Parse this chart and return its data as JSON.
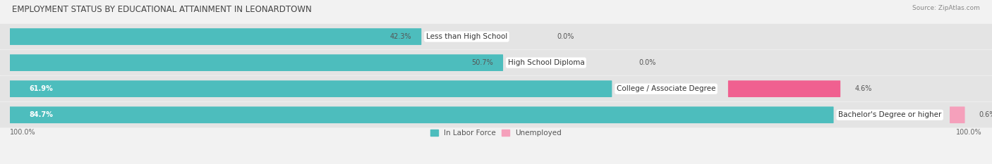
{
  "title": "EMPLOYMENT STATUS BY EDUCATIONAL ATTAINMENT IN LEONARDTOWN",
  "source": "Source: ZipAtlas.com",
  "categories": [
    "Less than High School",
    "High School Diploma",
    "College / Associate Degree",
    "Bachelor's Degree or higher"
  ],
  "labor_force_values": [
    42.3,
    50.7,
    61.9,
    84.7
  ],
  "unemployed_values": [
    0.0,
    0.0,
    4.6,
    0.6
  ],
  "labor_force_color": "#4dbdbd",
  "unemployed_color_soft": "#f5a0bb",
  "unemployed_color_vivid": "#f06090",
  "background_color": "#f2f2f2",
  "row_bg_light": "#e8e8e8",
  "row_bg_dark": "#dedede",
  "title_fontsize": 8.5,
  "label_fontsize": 7.5,
  "tick_fontsize": 7,
  "legend_fontsize": 7.5,
  "left_axis_label": "100.0%",
  "right_axis_label": "100.0%",
  "xlim_left": 0,
  "xlim_right": 100
}
